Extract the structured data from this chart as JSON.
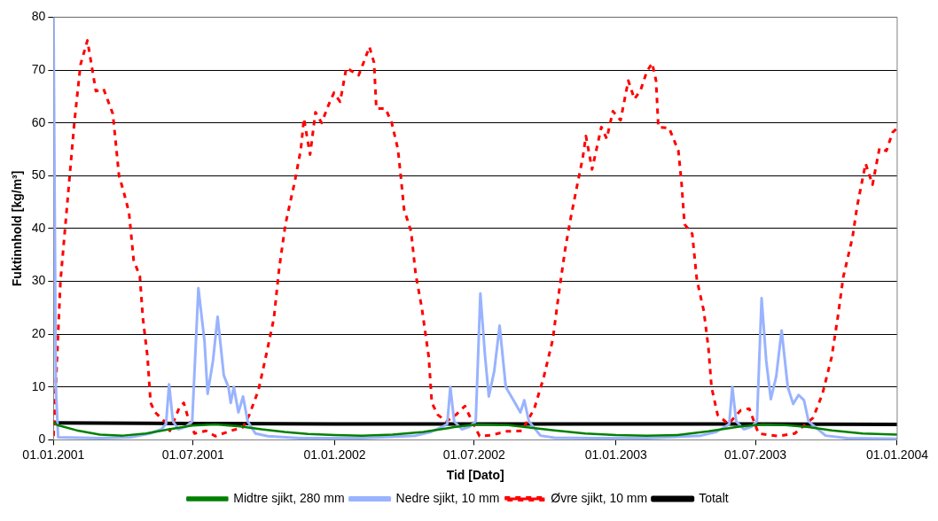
{
  "chart_data": {
    "type": "line",
    "xlabel": "Tid [Dato]",
    "ylabel": "Fuktinnhold [kg/m³]",
    "xlim": [
      "2001-01-01",
      "2004-01-01"
    ],
    "xticks": [
      {
        "value": "2001-01-01",
        "label": "01.01.2001"
      },
      {
        "value": "2001-07-01",
        "label": "01.07.2001"
      },
      {
        "value": "2002-01-01",
        "label": "01.01.2002"
      },
      {
        "value": "2002-07-01",
        "label": "01.07.2002"
      },
      {
        "value": "2003-01-01",
        "label": "01.01.2003"
      },
      {
        "value": "2003-07-01",
        "label": "01.07.2003"
      },
      {
        "value": "2004-01-01",
        "label": "01.01.2004"
      }
    ],
    "ylim": [
      0,
      80
    ],
    "yticks": [
      0,
      10,
      20,
      30,
      40,
      50,
      60,
      70,
      80
    ],
    "grid": "y",
    "legend": "bottom",
    "series": [
      {
        "name": "Midtre sjikt, 280 mm",
        "color": "#008000",
        "line_style": "solid",
        "x": [
          "2001-01-01",
          "2001-01-06",
          "2001-01-31",
          "2001-03-02",
          "2001-04-01",
          "2001-05-01",
          "2001-05-31",
          "2001-06-30",
          "2001-07-30",
          "2001-08-29",
          "2001-09-28",
          "2001-10-28",
          "2001-11-27",
          "2002-01-01",
          "2002-02-05",
          "2002-03-17",
          "2002-04-26",
          "2002-06-05",
          "2002-07-05",
          "2002-08-14",
          "2002-09-13",
          "2002-10-13",
          "2002-11-22",
          "2003-01-01",
          "2003-02-10",
          "2003-03-22",
          "2003-05-01",
          "2003-06-10",
          "2003-07-10",
          "2003-08-09",
          "2003-09-08",
          "2003-10-08",
          "2003-11-17",
          "2004-01-01"
        ],
        "values": [
          3.3,
          2.8,
          1.8,
          1.0,
          0.8,
          1.2,
          2.0,
          2.7,
          2.9,
          2.6,
          2.0,
          1.5,
          1.1,
          0.9,
          0.8,
          1.0,
          1.5,
          2.4,
          2.9,
          2.8,
          2.3,
          1.8,
          1.2,
          0.9,
          0.8,
          0.9,
          1.6,
          2.5,
          2.9,
          2.8,
          2.4,
          1.8,
          1.2,
          1.0
        ]
      },
      {
        "name": "Nedre sjikt, 10 mm",
        "color": "#99b3ff",
        "line_style": "solid",
        "x": [
          "2001-01-01",
          "2001-01-04",
          "2001-01-07",
          "2001-03-02",
          "2001-04-11",
          "2001-05-06",
          "2001-05-21",
          "2001-05-27",
          "2001-05-31",
          "2001-06-05",
          "2001-06-12",
          "2001-06-22",
          "2001-06-30",
          "2001-07-08",
          "2001-07-16",
          "2001-07-20",
          "2001-07-27",
          "2001-08-02",
          "2001-08-10",
          "2001-08-16",
          "2001-08-19",
          "2001-08-23",
          "2001-08-29",
          "2001-09-04",
          "2001-09-10",
          "2001-09-20",
          "2001-10-06",
          "2001-11-17",
          "2002-02-05",
          "2002-04-16",
          "2002-05-06",
          "2002-05-21",
          "2002-05-27",
          "2002-05-31",
          "2002-06-05",
          "2002-06-15",
          "2002-06-25",
          "2002-07-03",
          "2002-07-09",
          "2002-07-15",
          "2002-07-20",
          "2002-07-27",
          "2002-08-03",
          "2002-08-11",
          "2002-08-17",
          "2002-08-23",
          "2002-08-30",
          "2002-09-04",
          "2002-09-10",
          "2002-09-25",
          "2002-10-13",
          "2002-12-02",
          "2003-02-10",
          "2003-04-21",
          "2003-05-11",
          "2003-05-23",
          "2003-05-28",
          "2003-06-01",
          "2003-06-06",
          "2003-06-16",
          "2003-06-26",
          "2003-07-03",
          "2003-07-09",
          "2003-07-15",
          "2003-07-21",
          "2003-07-28",
          "2003-08-04",
          "2003-08-12",
          "2003-08-19",
          "2003-08-26",
          "2003-09-02",
          "2003-09-08",
          "2003-09-30",
          "2003-10-28",
          "2004-01-01"
        ],
        "values": [
          80,
          10,
          0.5,
          0.3,
          0.5,
          1.2,
          2.0,
          3.0,
          10.5,
          3.5,
          2.0,
          2.5,
          3.5,
          28.7,
          18.6,
          8.7,
          15,
          23.3,
          12.2,
          10,
          7,
          10,
          5.2,
          8.2,
          3.5,
          1.2,
          0.7,
          0.3,
          0.3,
          0.8,
          1.5,
          2.5,
          3.0,
          10,
          3.5,
          2.0,
          2.5,
          3.5,
          27.7,
          16,
          8.2,
          13,
          21.6,
          10,
          8.5,
          7,
          5.2,
          7.5,
          3.5,
          0.8,
          0.4,
          0.3,
          0.3,
          0.8,
          1.5,
          2.5,
          3.0,
          10,
          3.5,
          2.0,
          2.5,
          3.5,
          26.8,
          15,
          7.7,
          12,
          20.7,
          10,
          6.8,
          8.5,
          7.5,
          3.5,
          0.8,
          0.3,
          0.2
        ]
      },
      {
        "name": "Øvre sjikt, 10 mm",
        "color": "#ff0000",
        "line_style": "dashed",
        "x": [
          "2001-01-01",
          "2001-01-10",
          "2001-01-19",
          "2001-01-28",
          "2001-02-05",
          "2001-02-14",
          "2001-02-25",
          "2001-03-07",
          "2001-03-19",
          "2001-03-27",
          "2001-04-02",
          "2001-04-09",
          "2001-04-15",
          "2001-04-23",
          "2001-04-27",
          "2001-05-03",
          "2001-05-07",
          "2001-05-13",
          "2001-05-25",
          "2001-06-01",
          "2001-06-13",
          "2001-06-19",
          "2001-06-25",
          "2001-07-03",
          "2001-07-18",
          "2001-07-30",
          "2001-08-19",
          "2001-09-04",
          "2001-09-12",
          "2001-09-24",
          "2001-10-06",
          "2001-10-14",
          "2001-10-21",
          "2001-10-29",
          "2001-11-10",
          "2001-11-18",
          "2001-11-22",
          "2001-11-30",
          "2001-12-07",
          "2001-12-15",
          "2001-12-24",
          "2001-12-31",
          "2002-01-08",
          "2002-01-16",
          "2002-02-01",
          "2002-02-09",
          "2002-02-15",
          "2002-02-21",
          "2002-02-24",
          "2002-03-08",
          "2002-03-16",
          "2002-03-24",
          "2002-03-28",
          "2002-04-01",
          "2002-04-10",
          "2002-04-16",
          "2002-04-24",
          "2002-05-03",
          "2002-05-07",
          "2002-05-15",
          "2002-05-26",
          "2002-06-07",
          "2002-06-19",
          "2002-06-26",
          "2002-07-08",
          "2002-07-24",
          "2002-08-12",
          "2002-09-01",
          "2002-09-17",
          "2002-09-29",
          "2002-10-11",
          "2002-10-19",
          "2002-10-27",
          "2002-11-03",
          "2002-11-11",
          "2002-11-19",
          "2002-11-23",
          "2002-12-01",
          "2002-12-13",
          "2002-12-20",
          "2002-12-28",
          "2003-01-07",
          "2003-01-17",
          "2003-01-25",
          "2003-02-02",
          "2003-02-10",
          "2003-02-17",
          "2003-02-22",
          "2003-02-25",
          "2003-03-11",
          "2003-03-23",
          "2003-03-27",
          "2003-03-31",
          "2003-04-10",
          "2003-04-16",
          "2003-04-25",
          "2003-05-01",
          "2003-05-05",
          "2003-05-13",
          "2003-05-27",
          "2003-06-12",
          "2003-06-23",
          "2003-07-05",
          "2003-07-31",
          "2003-08-21",
          "2003-09-14",
          "2003-09-26",
          "2003-10-08",
          "2003-10-16",
          "2003-10-23",
          "2003-11-04",
          "2003-11-10",
          "2003-11-21",
          "2003-11-30",
          "2003-12-09",
          "2003-12-18",
          "2003-12-26",
          "2004-01-01"
        ],
        "values": [
          0.7,
          30,
          45,
          60,
          71,
          75.6,
          66,
          66.4,
          61.7,
          50,
          47,
          43,
          34,
          31,
          23,
          15.7,
          7,
          5.2,
          3.5,
          1.7,
          6,
          7,
          4,
          1.2,
          1.7,
          0.7,
          1.7,
          2.4,
          4.7,
          9.4,
          17.4,
          23,
          32.6,
          40.8,
          48.8,
          55,
          60.8,
          54,
          62,
          60,
          63.4,
          65.7,
          64,
          70.4,
          69,
          72,
          74.4,
          71.4,
          62.7,
          62.7,
          60,
          55,
          49.5,
          43.6,
          39.5,
          31.4,
          25,
          15.7,
          7,
          4.7,
          3.5,
          4.7,
          6.4,
          4.2,
          0.7,
          0.9,
          1.6,
          1.7,
          5.9,
          11.7,
          19,
          27.9,
          36,
          41.8,
          47.7,
          53.5,
          57.5,
          51.2,
          59.2,
          57,
          62.2,
          60.5,
          68,
          64.5,
          66.2,
          69.7,
          71.3,
          68,
          59.2,
          59,
          54.7,
          48.8,
          40.8,
          39,
          30.3,
          24.4,
          17.4,
          10,
          4.7,
          3,
          5.6,
          5.9,
          1.2,
          0.7,
          1.2,
          4.2,
          8.7,
          15.7,
          23.3,
          30.8,
          38.3,
          44.2,
          52.3,
          48.3,
          55.2,
          54.7,
          58.2,
          59
        ]
      },
      {
        "name": "Totalt",
        "color": "#000000",
        "line_style": "solid",
        "x": [
          "2001-01-01",
          "2001-07-01",
          "2002-01-01",
          "2002-07-01",
          "2003-01-01",
          "2003-07-01",
          "2004-01-01"
        ],
        "values": [
          3.2,
          3.1,
          3.0,
          3.0,
          3.0,
          3.0,
          2.9
        ]
      }
    ]
  }
}
